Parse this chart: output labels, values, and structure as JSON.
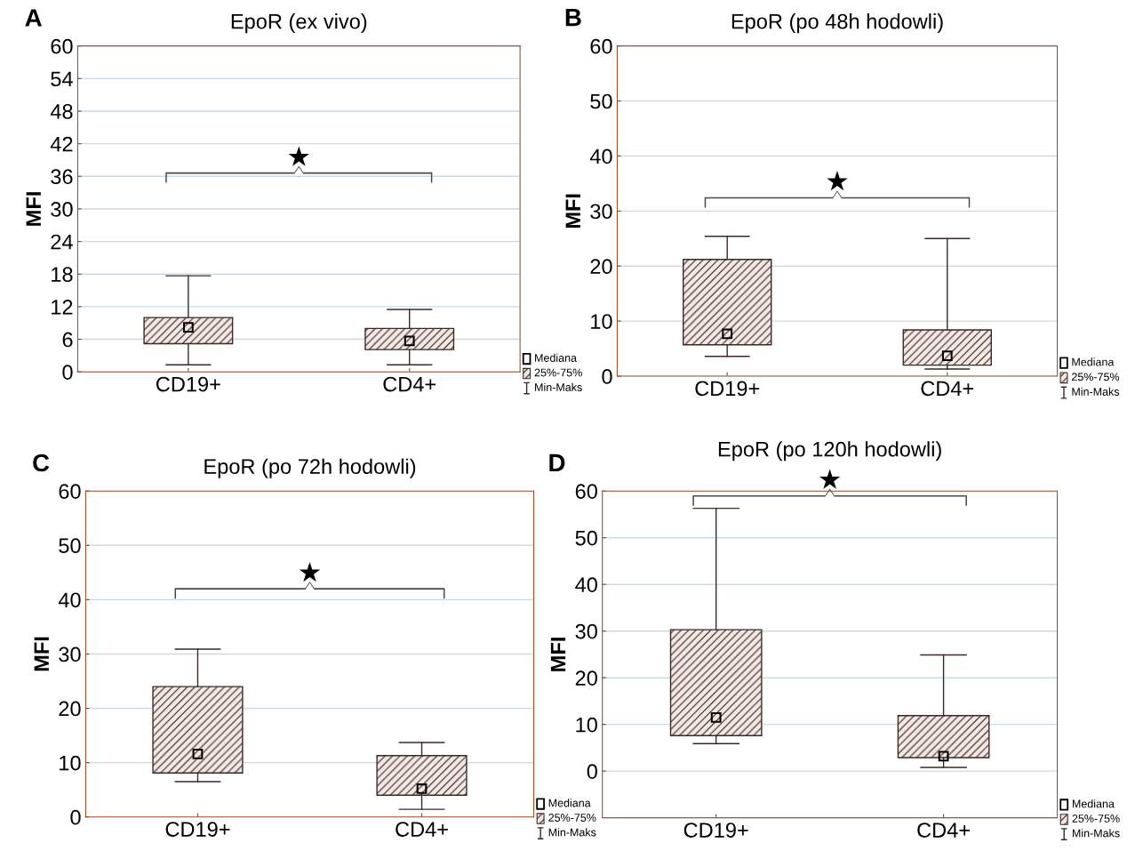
{
  "chart_data": [
    {
      "type": "box",
      "title": "EpoR (ex vivo)",
      "ylabel": "MFI",
      "categories": [
        "CD19+",
        "CD4+"
      ],
      "ylim": [
        0,
        60
      ],
      "yticks": [
        0,
        6,
        12,
        18,
        24,
        30,
        36,
        42,
        48,
        54,
        60
      ],
      "grid": "y",
      "marker": "square",
      "series": [
        {
          "color": "#3a2a25",
          "boxes": [
            {
              "low": 1.3,
              "q1": 5.2,
              "median": 8.2,
              "q3": 10.0,
              "high": 17.7
            },
            {
              "low": 1.3,
              "q1": 4.1,
              "median": 5.7,
              "q3": 8.0,
              "high": 11.5
            }
          ]
        }
      ],
      "annotations": [
        "A",
        "★",
        "Mediana",
        "25%-75%",
        "Min-Maks"
      ]
    },
    {
      "type": "box",
      "title": "EpoR (po 48h hodowli)",
      "ylabel": "MFI",
      "categories": [
        "CD19+",
        "CD4+"
      ],
      "ylim": [
        0,
        60
      ],
      "yticks": [
        0,
        10,
        20,
        30,
        40,
        50,
        60
      ],
      "grid": "y",
      "marker": "square",
      "series": [
        {
          "color": "#3a2a25",
          "boxes": [
            {
              "low": 3.6,
              "q1": 5.7,
              "median": 7.7,
              "q3": 21.2,
              "high": 25.4
            },
            {
              "low": 1.3,
              "q1": 2.0,
              "median": 3.7,
              "q3": 8.4,
              "high": 25.0
            }
          ]
        }
      ],
      "annotations": [
        "B",
        "★",
        "Mediana",
        "25%-75%",
        "Min-Maks"
      ]
    },
    {
      "type": "box",
      "title": "EpoR (po 72h hodowli)",
      "ylabel": "MFI",
      "categories": [
        "CD19+",
        "CD4+"
      ],
      "ylim": [
        0,
        60
      ],
      "yticks": [
        0,
        10,
        20,
        30,
        40,
        50,
        60
      ],
      "grid": "y",
      "marker": "square",
      "series": [
        {
          "color": "#3a2a25",
          "boxes": [
            {
              "low": 6.5,
              "q1": 8.1,
              "median": 11.6,
              "q3": 24.0,
              "high": 30.9
            },
            {
              "low": 1.4,
              "q1": 4.0,
              "median": 5.2,
              "q3": 11.3,
              "high": 13.7
            }
          ]
        }
      ],
      "annotations": [
        "C",
        "★",
        "Mediana",
        "25%-75%",
        "Min-Maks"
      ]
    },
    {
      "type": "box",
      "title": "EpoR (po 120h hodowli)",
      "ylabel": "MFI",
      "categories": [
        "CD19+",
        "CD4+"
      ],
      "ylim": [
        -10,
        60
      ],
      "yticks": [
        0,
        10,
        20,
        30,
        40,
        50,
        60
      ],
      "grid": "y",
      "marker": "square",
      "series": [
        {
          "color": "#3a2a25",
          "boxes": [
            {
              "low": 5.9,
              "q1": 7.6,
              "median": 11.5,
              "q3": 30.3,
              "high": 56.3
            },
            {
              "low": 0.8,
              "q1": 2.9,
              "median": 3.2,
              "q3": 11.9,
              "high": 24.9
            }
          ]
        }
      ],
      "annotations": [
        "D",
        "★",
        "Mediana",
        "25%-75%",
        "Min-Maks"
      ]
    }
  ]
}
